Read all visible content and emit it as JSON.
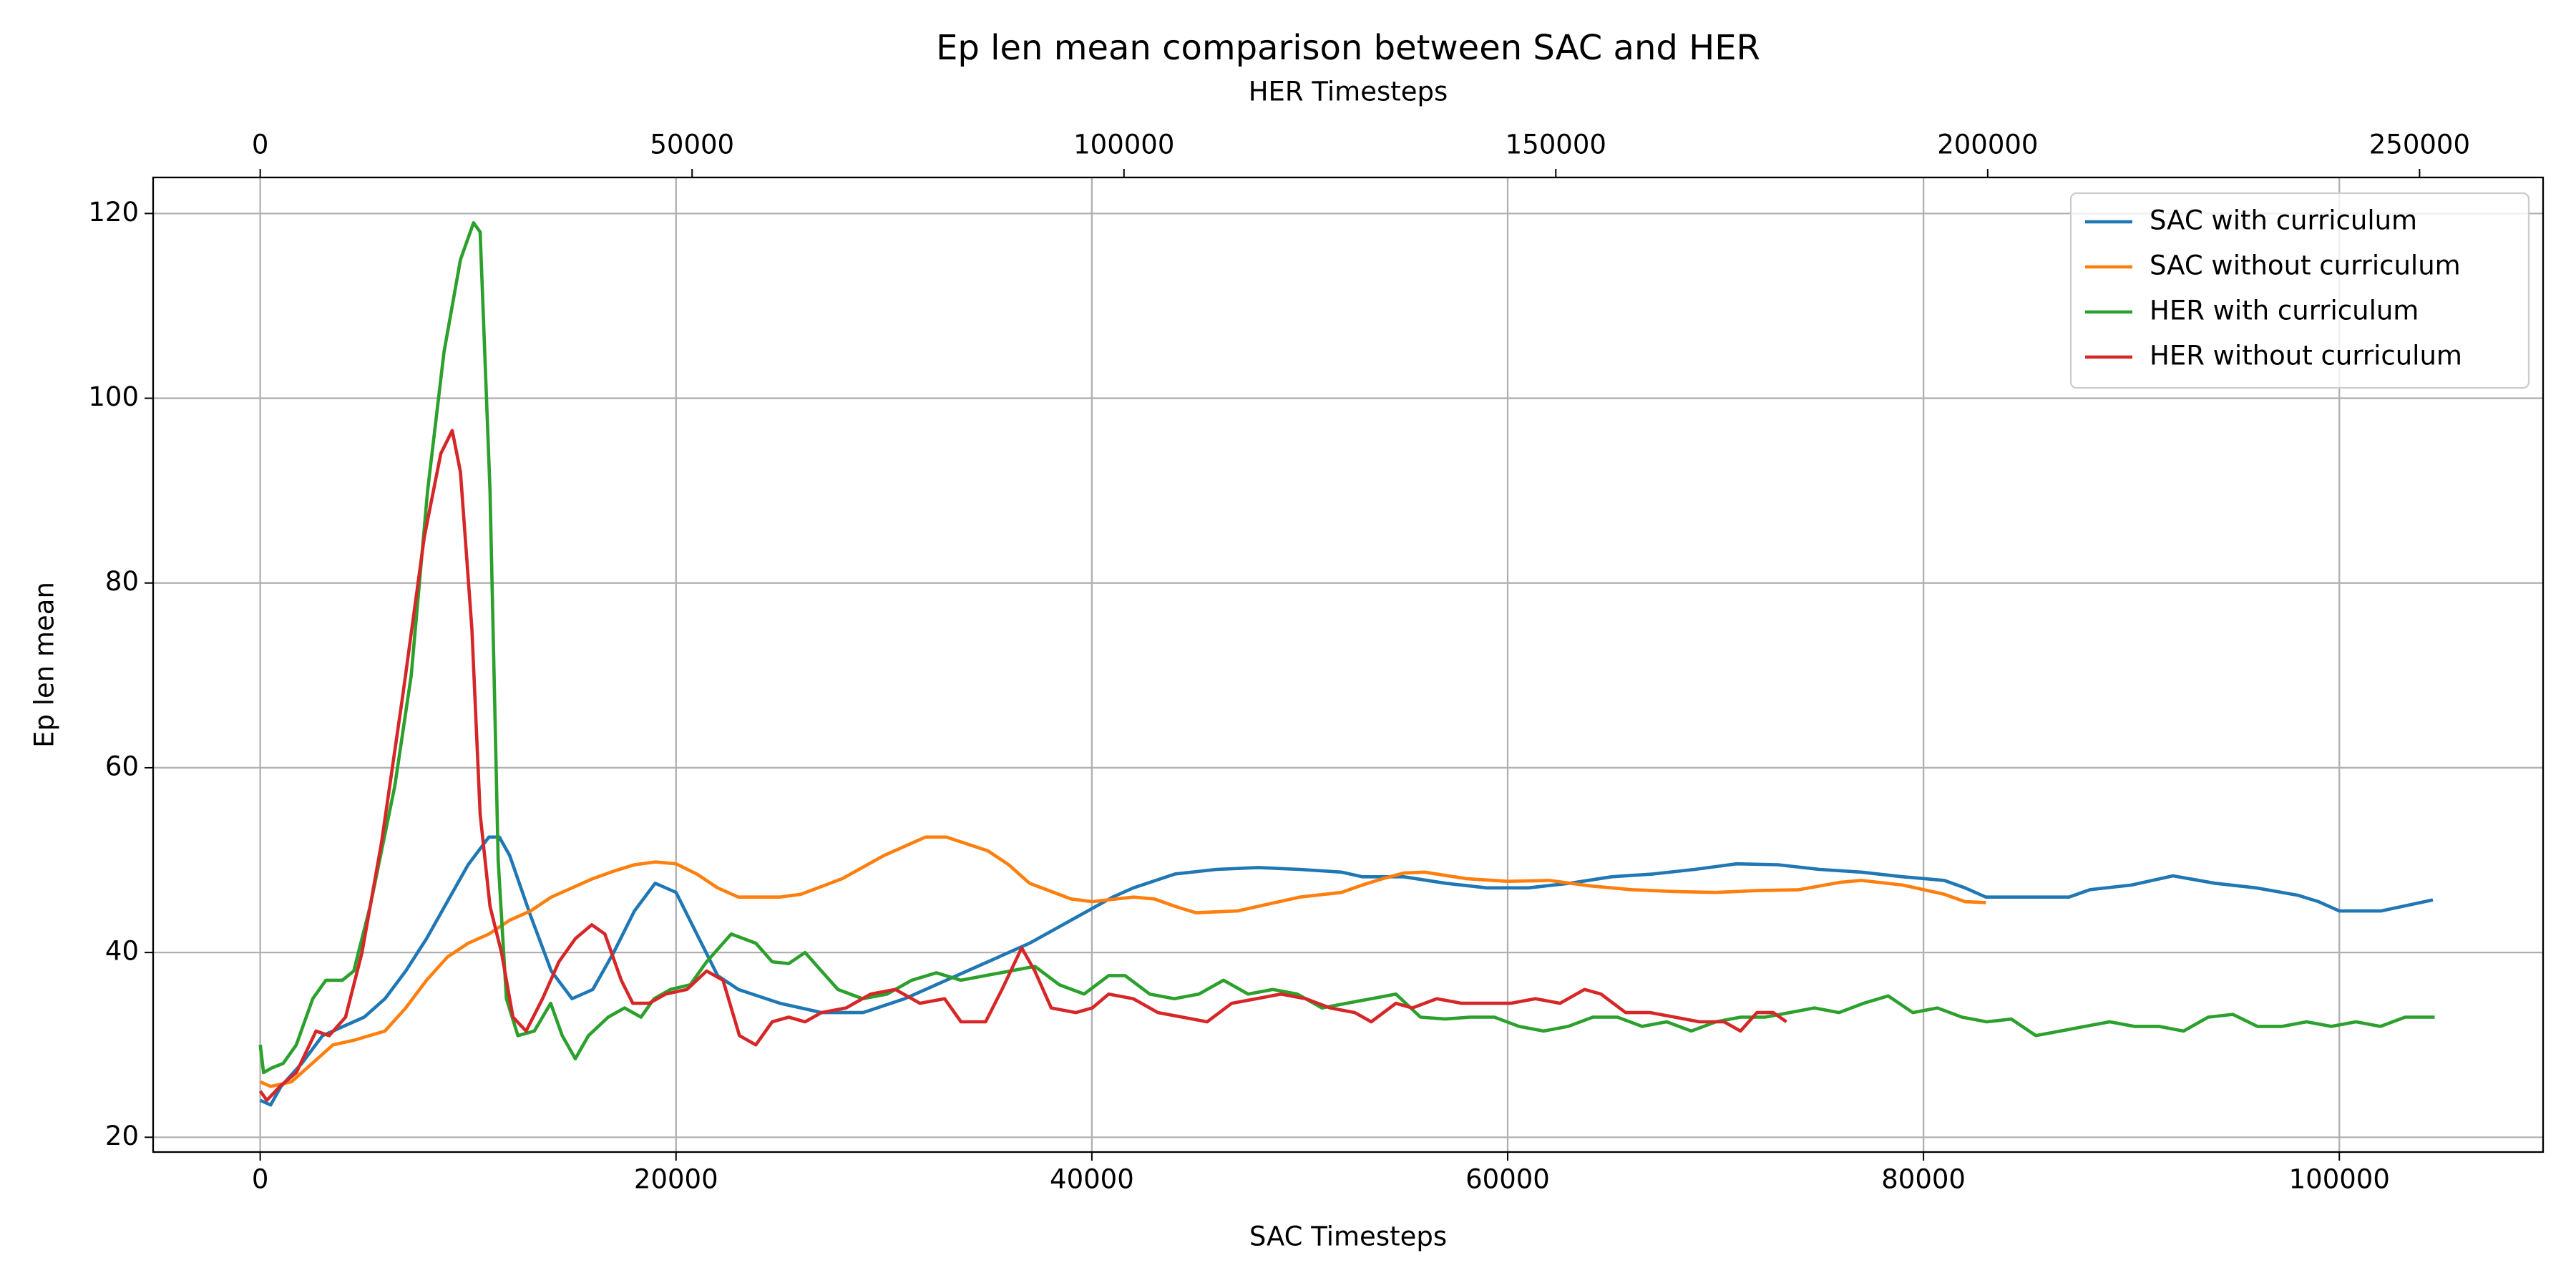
{
  "chart_data": {
    "type": "line",
    "title": "Ep len mean comparison between SAC and HER",
    "xlabel": "SAC Timesteps",
    "x2label": "HER Timesteps",
    "ylabel": "Ep len mean",
    "xlim": [
      -5150,
      109800
    ],
    "xticks": [
      0,
      20000,
      40000,
      60000,
      80000,
      100000
    ],
    "x2lim": [
      -12400,
      264300
    ],
    "x2ticks": [
      0,
      50000,
      100000,
      150000,
      200000,
      250000
    ],
    "ylim": [
      18.4,
      123.9
    ],
    "yticks": [
      20,
      40,
      60,
      80,
      100,
      120
    ],
    "grid": true,
    "legend": "upper right",
    "series": [
      {
        "name": "SAC with curriculum",
        "color": "#1f77b4",
        "xaxis": "x",
        "x": [
          0,
          500,
          1000,
          2000,
          3000,
          4000,
          5000,
          6000,
          7000,
          8000,
          9000,
          10000,
          11000,
          11500,
          12000,
          13000,
          14000,
          15000,
          16000,
          17000,
          18000,
          19000,
          20000,
          21000,
          22000,
          23000,
          25000,
          27000,
          29000,
          31000,
          33000,
          35000,
          37000,
          39000,
          41000,
          42000,
          44000,
          46000,
          48000,
          50000,
          52000,
          53000,
          55000,
          57000,
          59000,
          61000,
          63000,
          65000,
          67000,
          69000,
          71000,
          73000,
          75000,
          77000,
          79000,
          81000,
          82000,
          83000,
          85000,
          87000,
          88000,
          90000,
          92000,
          94000,
          96000,
          98000,
          99000,
          100000,
          102000,
          104500
        ],
        "values": [
          24,
          23.5,
          25.5,
          28,
          31,
          32,
          33,
          35,
          38,
          41.5,
          45.5,
          49.5,
          52.5,
          52.5,
          50.5,
          44,
          38,
          35,
          36,
          40,
          44.5,
          47.5,
          46.5,
          42,
          37.5,
          36,
          34.5,
          33.5,
          33.5,
          35,
          37,
          39,
          41,
          43.5,
          46,
          47,
          48.5,
          49,
          49.2,
          49,
          48.7,
          48.2,
          48.2,
          47.5,
          47,
          47,
          47.5,
          48.2,
          48.5,
          49,
          49.6,
          49.5,
          49,
          48.7,
          48.2,
          47.8,
          47,
          46,
          46,
          46,
          46.8,
          47.3,
          48.3,
          47.5,
          47,
          46.2,
          45.5,
          44.5,
          44.5,
          45.7
        ]
      },
      {
        "name": "SAC without curriculum",
        "color": "#ff7f0e",
        "xaxis": "x",
        "x": [
          0,
          500,
          1500,
          2500,
          3500,
          4500,
          6000,
          7000,
          8000,
          9000,
          10000,
          11000,
          12000,
          13000,
          14000,
          15000,
          16000,
          17000,
          18000,
          19000,
          20000,
          21000,
          22000,
          23000,
          25000,
          26000,
          28000,
          30000,
          32000,
          33000,
          35000,
          36000,
          37000,
          39000,
          40000,
          42000,
          43000,
          44000,
          45000,
          47000,
          48000,
          50000,
          52000,
          53000,
          54000,
          55000,
          56000,
          58000,
          60000,
          62000,
          64000,
          66000,
          68000,
          70000,
          72000,
          74000,
          76000,
          77000,
          79000,
          81000,
          82000,
          83000
        ],
        "values": [
          26,
          25.5,
          26,
          28,
          30,
          30.5,
          31.5,
          34,
          37,
          39.5,
          41,
          42,
          43.5,
          44.5,
          46,
          47,
          48,
          48.8,
          49.5,
          49.8,
          49.6,
          48.5,
          47,
          46,
          46,
          46.3,
          48,
          50.5,
          52.5,
          52.5,
          51,
          49.5,
          47.5,
          45.8,
          45.5,
          46,
          45.8,
          45,
          44.3,
          44.5,
          45,
          46,
          46.5,
          47.3,
          48,
          48.6,
          48.7,
          48,
          47.7,
          47.8,
          47.2,
          46.8,
          46.6,
          46.5,
          46.7,
          46.8,
          47.6,
          47.8,
          47.3,
          46.3,
          45.5,
          45.4
        ]
      },
      {
        "name": "HER with curriculum",
        "color": "#2ca02c",
        "xaxis": "x2",
        "x": [
          0,
          380,
          1330,
          2660,
          4180,
          6080,
          7600,
          9500,
          10830,
          12730,
          15580,
          17480,
          19380,
          21280,
          23180,
          24700,
          25460,
          26600,
          27550,
          28500,
          29830,
          31730,
          33630,
          34960,
          36480,
          38000,
          40280,
          42180,
          44080,
          45600,
          47500,
          49780,
          51680,
          54530,
          57380,
          59280,
          61180,
          63080,
          64980,
          66880,
          69730,
          72580,
          75430,
          78280,
          81130,
          83980,
          86830,
          89680,
          92530,
          95380,
          98230,
          100130,
          102980,
          105830,
          108680,
          111530,
          114380,
          117230,
          120080,
          122930,
          125780,
          128630,
          131480,
          134330,
          137180,
          140030,
          142880,
          145730,
          148580,
          151430,
          154280,
          157130,
          159980,
          162830,
          165680,
          168530,
          171380,
          174230,
          177080,
          179930,
          182780,
          185630,
          188480,
          191330,
          194180,
          197030,
          199880,
          202730,
          205580,
          208430,
          211280,
          214130,
          216980,
          219830,
          222680,
          225530,
          228380,
          231230,
          234080,
          236930,
          239780,
          242630,
          245480,
          248330,
          251750
        ],
        "values": [
          30,
          27,
          27.5,
          28,
          30,
          35,
          37,
          37,
          38,
          45,
          58,
          70,
          90,
          105,
          115,
          119,
          118,
          90,
          50,
          35,
          31,
          31.5,
          34.5,
          31,
          28.5,
          31,
          33,
          34,
          33,
          35,
          36,
          36.5,
          39,
          42,
          41,
          39,
          38.8,
          40,
          38,
          36,
          35,
          35.5,
          37,
          37.8,
          37,
          37.5,
          38,
          38.5,
          36.5,
          35.5,
          37.5,
          37.5,
          35.5,
          35,
          35.5,
          37,
          35.5,
          36,
          35.5,
          34,
          34.5,
          35,
          35.5,
          33,
          32.8,
          33,
          33,
          32,
          31.5,
          32,
          33,
          33,
          32,
          32.5,
          31.5,
          32.5,
          33,
          33,
          33.5,
          34,
          33.5,
          34.5,
          35.3,
          33.5,
          34,
          33,
          32.5,
          32.8,
          31,
          31.5,
          32,
          32.5,
          32,
          32,
          31.5,
          33,
          33.3,
          32,
          32,
          32.5,
          32,
          32.5,
          32,
          33,
          33
        ]
      },
      {
        "name": "HER without curriculum",
        "color": "#d62728",
        "xaxis": "x2",
        "x": [
          0,
          760,
          2280,
          4180,
          6460,
          7980,
          9880,
          11780,
          14060,
          16530,
          19000,
          20900,
          22230,
          23180,
          24510,
          25460,
          26600,
          27930,
          29260,
          30780,
          32680,
          34580,
          36480,
          38380,
          39900,
          41800,
          43130,
          45030,
          46930,
          49400,
          51680,
          53580,
          55480,
          57380,
          59280,
          61180,
          63080,
          64980,
          67830,
          70680,
          73530,
          76380,
          79230,
          81130,
          83980,
          85880,
          88160,
          89680,
          91580,
          94430,
          96330,
          98230,
          101080,
          103930,
          106780,
          109630,
          112480,
          115330,
          118180,
          121030,
          123880,
          126730,
          128630,
          131480,
          133380,
          136230,
          139080,
          141930,
          144780,
          147630,
          150480,
          153330,
          155230,
          158080,
          160930,
          163780,
          166630,
          169480,
          171380,
          173280,
          175180,
          176700
        ],
        "values": [
          25,
          24,
          25.5,
          27,
          31.5,
          31,
          33,
          40,
          52,
          68,
          85,
          94,
          96.5,
          92,
          75,
          55,
          45,
          40,
          33,
          31.5,
          35,
          39,
          41.5,
          43,
          42,
          37,
          34.5,
          34.5,
          35.5,
          36,
          38,
          37,
          31,
          30,
          32.5,
          33,
          32.5,
          33.5,
          34,
          35.5,
          36,
          34.5,
          35,
          32.5,
          32.5,
          36,
          40.5,
          38,
          34,
          33.5,
          34,
          35.5,
          35,
          33.5,
          33,
          32.5,
          34.5,
          35,
          35.5,
          35,
          34,
          33.5,
          32.5,
          34.5,
          34,
          35,
          34.5,
          34.5,
          34.5,
          35,
          34.5,
          36,
          35.5,
          33.5,
          33.5,
          33,
          32.5,
          32.5,
          31.5,
          33.5,
          33.5,
          32.5
        ]
      }
    ]
  }
}
